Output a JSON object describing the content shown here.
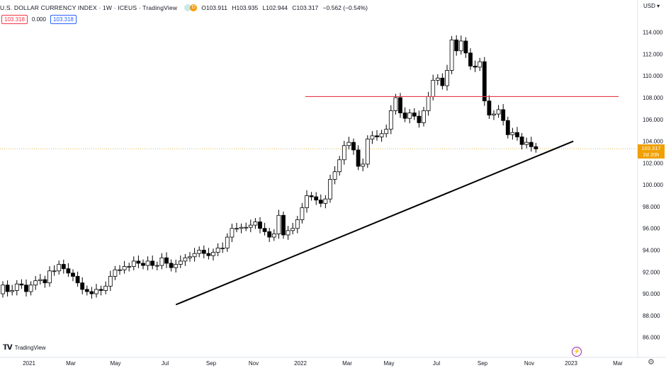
{
  "header": {
    "title": "U.S. DOLLAR CURRENCY INDEX · 1W · ICEUS · TradingView",
    "indicator_dot": "D",
    "ohlc": [
      "O103.911",
      "H103.935",
      "L102.944",
      "C103.317",
      "−0.562 (−0.54%)"
    ]
  },
  "badges": {
    "left": "103.318",
    "mid": "0.000",
    "right": "103.318"
  },
  "currency": "USD",
  "logo_text": "TradingView",
  "last_price": {
    "value": "103.317",
    "countdown": "2d 20h"
  },
  "colors": {
    "resistance": "#e53946",
    "trendline": "#000000",
    "last_price_line": "#d4a017",
    "price_tag": "#f0a000"
  },
  "chart_data": {
    "type": "candlestick",
    "title": "U.S. DOLLAR CURRENCY INDEX",
    "ylim": [
      85.2,
      115.6
    ],
    "y_ticks": [
      86.0,
      88.0,
      90.0,
      92.0,
      94.0,
      96.0,
      98.0,
      100.0,
      102.0,
      104.0,
      106.0,
      108.0,
      110.0,
      112.0,
      114.0
    ],
    "x_tick_labels": [
      "2021",
      "Mar",
      "May",
      "Jul",
      "Sep",
      "Nov",
      "2022",
      "Mar",
      "May",
      "Jul",
      "Sep",
      "Nov",
      "2023",
      "Mar"
    ],
    "closes": [
      90.8,
      90.2,
      90.3,
      90.9,
      90.8,
      90.2,
      90.8,
      91.2,
      91.3,
      91.0,
      92.1,
      92.1,
      92.7,
      92.3,
      91.9,
      91.6,
      91.0,
      90.4,
      90.2,
      90.0,
      90.4,
      90.3,
      90.7,
      91.6,
      92.2,
      92.2,
      92.5,
      92.5,
      93.0,
      92.8,
      92.6,
      93.0,
      92.6,
      92.6,
      93.3,
      92.8,
      92.4,
      92.7,
      93.0,
      93.3,
      93.4,
      93.7,
      94.0,
      93.7,
      93.5,
      93.8,
      94.2,
      94.2,
      95.2,
      96.0,
      96.0,
      96.1,
      96.1,
      96.3,
      96.6,
      96.0,
      95.7,
      95.2,
      95.5,
      97.2,
      95.4,
      95.8,
      96.0,
      96.8,
      97.9,
      99.0,
      98.9,
      98.6,
      98.3,
      98.7,
      100.5,
      101.2,
      102.3,
      103.6,
      103.9,
      103.2,
      101.7,
      101.9,
      104.2,
      104.5,
      104.4,
      104.7,
      105.1,
      106.8,
      108.0,
      106.6,
      106.1,
      106.6,
      106.3,
      105.7,
      106.8,
      108.1,
      109.6,
      109.8,
      109.1,
      110.5,
      113.3,
      112.3,
      113.2,
      112.1,
      110.9,
      110.8,
      111.3,
      107.7,
      106.4,
      106.5,
      106.9,
      105.9,
      104.6,
      104.8,
      104.4,
      103.7,
      103.9,
      103.5,
      103.3
    ],
    "first_open": 90.0,
    "resistance_level": 108.1,
    "trendline": {
      "start": {
        "week": 37,
        "value": 89.0
      },
      "end": {
        "week": 122,
        "value": 104.0
      }
    },
    "last_price": 103.317
  }
}
